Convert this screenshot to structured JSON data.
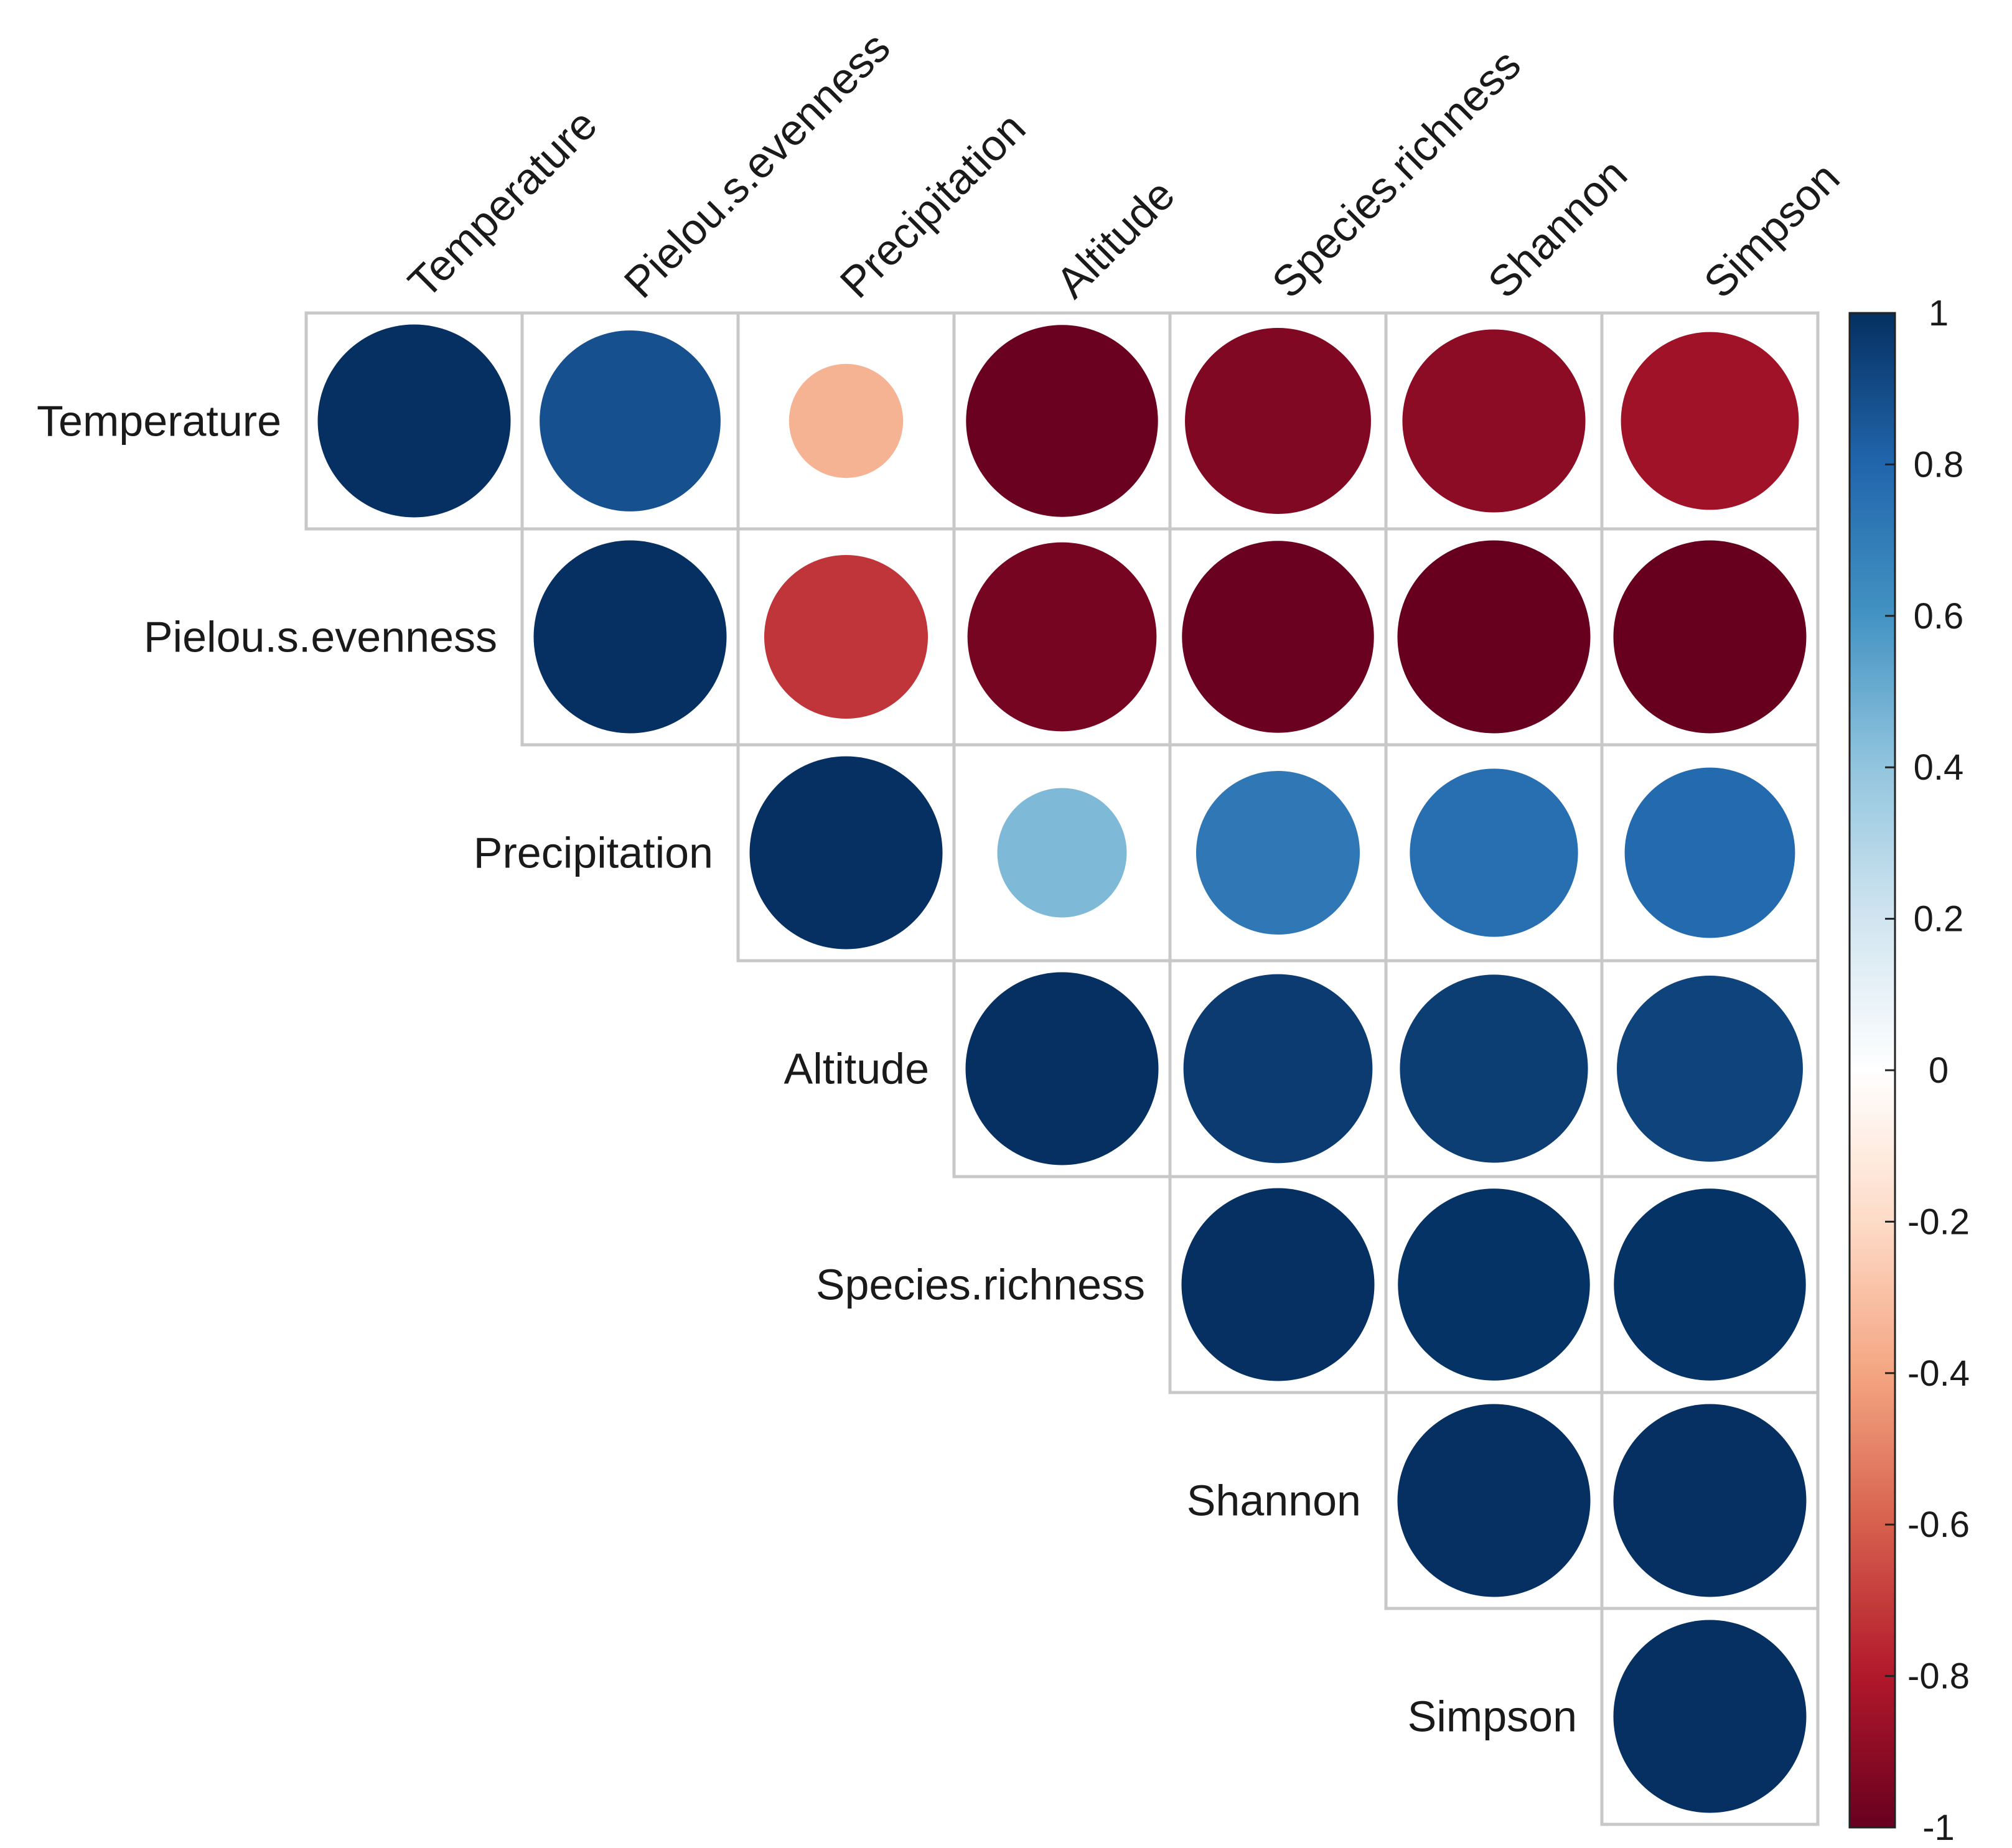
{
  "chart_data": {
    "type": "heatmap",
    "subtype": "correlation-circles-upper",
    "variables": [
      "Temperature",
      "Pielou.s.evenness",
      "Precipitation",
      "Altitude",
      "Species.richness",
      "Shannon",
      "Simpson"
    ],
    "matrix": [
      [
        1.0,
        0.88,
        -0.35,
        -0.99,
        -0.93,
        -0.9,
        -0.85
      ],
      [
        null,
        1.0,
        -0.72,
        -0.96,
        -0.99,
        -1.0,
        -1.0
      ],
      [
        null,
        null,
        1.0,
        0.45,
        0.72,
        0.76,
        0.78
      ],
      [
        null,
        null,
        null,
        1.0,
        0.96,
        0.95,
        0.93
      ],
      [
        null,
        null,
        null,
        null,
        1.0,
        0.99,
        0.99
      ],
      [
        null,
        null,
        null,
        null,
        null,
        1.0,
        1.0
      ],
      [
        null,
        null,
        null,
        null,
        null,
        null,
        1.0
      ]
    ],
    "colorbar": {
      "ticks": [
        "1",
        "0.8",
        "0.6",
        "0.4",
        "0.2",
        "0",
        "-0.2",
        "-0.4",
        "-0.6",
        "-0.8",
        "-1"
      ],
      "range": [
        -1,
        1
      ],
      "colors": [
        "#67001f",
        "#b2182b",
        "#d6604d",
        "#f4a582",
        "#fddbc7",
        "#ffffff",
        "#d1e5f0",
        "#92c5de",
        "#4393c3",
        "#2166ac",
        "#053061"
      ]
    }
  }
}
